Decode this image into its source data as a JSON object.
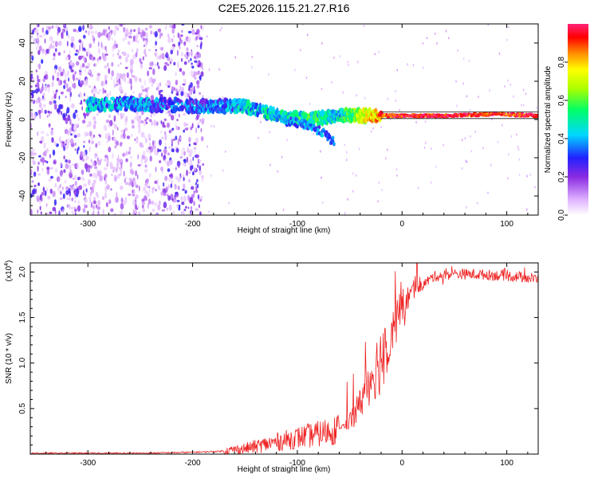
{
  "title": "C2E5.2026.115.21.27.R16",
  "chart_data": [
    {
      "type": "heatmap",
      "name": "spectrogram",
      "title": "C2E5.2026.115.21.27.R16",
      "xlabel": "Height of straight line (km)",
      "ylabel": "Frequency (Hz)",
      "xlim": [
        -355,
        130
      ],
      "ylim": [
        -50,
        50
      ],
      "xticks": [
        -300,
        -200,
        -100,
        0,
        100
      ],
      "xtick_labels": [
        "-300",
        "-200",
        "-100",
        "0",
        "100"
      ],
      "yticks": [
        -40,
        -20,
        0,
        20,
        40
      ],
      "ytick_labels": [
        "-40",
        "-20",
        "0",
        "20",
        "40"
      ],
      "colorbar": {
        "label": "Normalized spectral amplitude",
        "range": [
          0,
          1
        ],
        "ticks": [
          0.0,
          0.2,
          0.4,
          0.6,
          0.8
        ],
        "tick_labels": [
          "0.0",
          "0.2",
          "0.4",
          "0.6",
          "0.8"
        ]
      },
      "noise_region_km": [
        -355,
        -190
      ],
      "signal_track": [
        {
          "x": -300,
          "y": 8,
          "amp": 0.4
        },
        {
          "x": -250,
          "y": 8,
          "amp": 0.35
        },
        {
          "x": -200,
          "y": 7,
          "amp": 0.3
        },
        {
          "x": -150,
          "y": 7,
          "amp": 0.4
        },
        {
          "x": -120,
          "y": 2,
          "amp": 0.45
        },
        {
          "x": -90,
          "y": 0,
          "amp": 0.5
        },
        {
          "x": -60,
          "y": 2,
          "amp": 0.45
        },
        {
          "x": -20,
          "y": 2,
          "amp": 0.85
        },
        {
          "x": 0,
          "y": 2,
          "amp": 0.95
        },
        {
          "x": 50,
          "y": 2,
          "amp": 0.95
        },
        {
          "x": 90,
          "y": 3,
          "amp": 0.9
        },
        {
          "x": 130,
          "y": 2,
          "amp": 0.95
        }
      ],
      "secondary_track": [
        {
          "x": -110,
          "y": -1
        },
        {
          "x": -90,
          "y": -3
        },
        {
          "x": -75,
          "y": -7
        },
        {
          "x": -65,
          "y": -12
        }
      ]
    },
    {
      "type": "line",
      "name": "snr",
      "xlabel": "Height of straight line (km)",
      "ylabel": "SNR (10 * v/v)",
      "y_multiplier_label": "(x10",
      "y_multiplier_exp": "4",
      "y_multiplier_close": ")",
      "color": "#ee2222",
      "xlim": [
        -355,
        130
      ],
      "ylim": [
        0,
        2.1
      ],
      "xticks": [
        -300,
        -200,
        -100,
        0,
        100
      ],
      "xtick_labels": [
        "-300",
        "-200",
        "-100",
        "0",
        "100"
      ],
      "yticks": [
        0.5,
        1.0,
        1.5,
        2.0
      ],
      "ytick_labels": [
        "0.5",
        "1.0",
        "1.5",
        "2.0"
      ],
      "series": [
        {
          "name": "SNR",
          "x": [
            -355,
            -300,
            -250,
            -200,
            -175,
            -150,
            -125,
            -100,
            -80,
            -60,
            -50,
            -40,
            -30,
            -20,
            -10,
            0,
            10,
            20,
            30,
            50,
            80,
            110,
            130
          ],
          "y": [
            0.01,
            0.01,
            0.01,
            0.02,
            0.03,
            0.06,
            0.12,
            0.18,
            0.22,
            0.28,
            0.36,
            0.55,
            0.85,
            1.05,
            1.35,
            1.62,
            1.78,
            1.86,
            1.95,
            1.98,
            1.97,
            1.95,
            1.92
          ]
        }
      ]
    }
  ]
}
